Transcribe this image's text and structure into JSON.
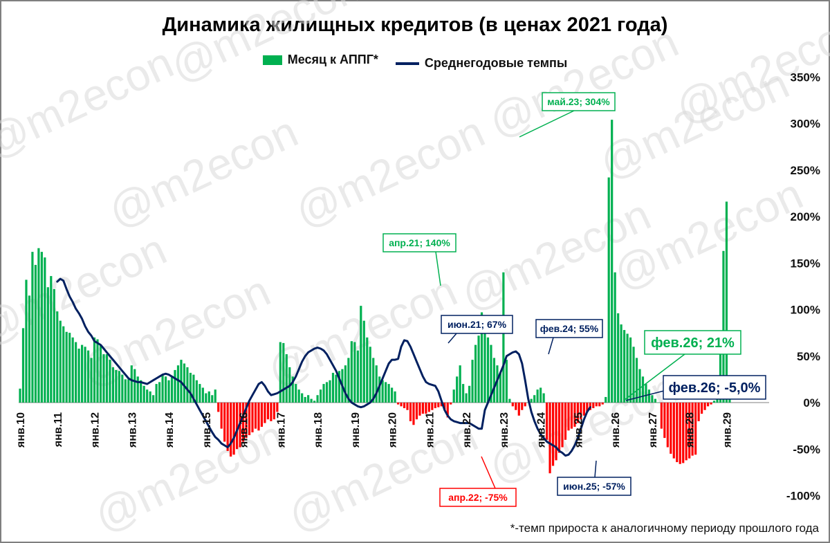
{
  "title": "Динамика жилищных кредитов (в ценах 2021 года)",
  "legend": {
    "bar_label": "Месяц к АППГ*",
    "line_label": "Среднегодовые темпы"
  },
  "footnote": "*-темп прироста к аналогичному периоду прошлого года",
  "watermark": "@m2econ",
  "colors": {
    "bar_positive": "#00b050",
    "bar_negative": "#ff0000",
    "line": "#002060"
  },
  "chart_data": {
    "type": "bar",
    "title": "Динамика жилищных кредитов (в ценах 2021 года)",
    "x_start": "янв.10",
    "x_ticks": [
      "янв.10",
      "янв.11",
      "янв.12",
      "янв.13",
      "янв.14",
      "янв.15",
      "янв.16",
      "янв.17",
      "янв.18",
      "янв.19",
      "янв.20",
      "янв.21",
      "янв.22",
      "янв.23",
      "янв.24",
      "янв.25",
      "янв.26",
      "янв.27",
      "янв.28",
      "янв.29"
    ],
    "y_ticks": [
      "350%",
      "300%",
      "250%",
      "200%",
      "150%",
      "100%",
      "50%",
      "0%",
      "-50%",
      "-100%"
    ],
    "ylim": [
      -100,
      350
    ],
    "series": [
      {
        "name": "Месяц к АППГ*",
        "type": "bar",
        "values": [
          15,
          80,
          132,
          115,
          162,
          148,
          166,
          162,
          156,
          124,
          136,
          122,
          98,
          88,
          82,
          76,
          75,
          70,
          65,
          58,
          62,
          60,
          56,
          48,
          70,
          68,
          62,
          52,
          52,
          46,
          38,
          35,
          34,
          30,
          25,
          25,
          40,
          36,
          28,
          24,
          18,
          14,
          12,
          8,
          20,
          22,
          30,
          28,
          24,
          28,
          35,
          40,
          46,
          42,
          38,
          32,
          30,
          24,
          20,
          16,
          10,
          12,
          8,
          14,
          -10,
          -28,
          -42,
          -52,
          -58,
          -56,
          -50,
          -48,
          -42,
          -38,
          -35,
          -32,
          -28,
          -30,
          -26,
          -22,
          -18,
          -20,
          -18,
          -10,
          65,
          64,
          52,
          38,
          28,
          20,
          14,
          10,
          6,
          8,
          4,
          2,
          8,
          14,
          20,
          22,
          24,
          32,
          30,
          34,
          36,
          40,
          48,
          66,
          65,
          56,
          104,
          88,
          70,
          60,
          48,
          40,
          28,
          24,
          22,
          20,
          16,
          12,
          -2,
          -4,
          -6,
          -8,
          -20,
          -24,
          -18,
          -14,
          -12,
          -12,
          -10,
          -8,
          -6,
          -5,
          -4,
          -8,
          -16,
          -2,
          14,
          28,
          40,
          20,
          10,
          18,
          46,
          62,
          72,
          97,
          85,
          70,
          62,
          48,
          40,
          32,
          140,
          46,
          4,
          -4,
          -8,
          -14,
          -8,
          -4,
          0,
          4,
          8,
          14,
          16,
          10,
          -40,
          -76,
          -68,
          -62,
          -54,
          -48,
          -40,
          -30,
          -28,
          -26,
          -22,
          -18,
          -14,
          -10,
          -8,
          -6,
          -4,
          -4,
          -2,
          6,
          242,
          304,
          140,
          96,
          84,
          78,
          74,
          70,
          60,
          48,
          36,
          28,
          20,
          14,
          8,
          4,
          0,
          -28,
          -38,
          -48,
          -55,
          -60,
          -64,
          -66,
          -65,
          -62,
          -60,
          -57,
          -56,
          -20,
          -12,
          -8,
          -4,
          -2,
          2,
          24,
          72,
          163,
          216,
          22
        ]
      },
      {
        "name": "Среднегодовые темпы",
        "type": "line",
        "values": [
          130,
          133,
          131,
          122,
          114,
          108,
          101,
          96,
          90,
          82,
          76,
          72,
          66,
          64,
          62,
          58,
          54,
          50,
          46,
          42,
          38,
          34,
          30,
          26,
          24,
          23,
          22,
          22,
          21,
          20,
          22,
          24,
          26,
          28,
          30,
          31,
          30,
          28,
          26,
          24,
          22,
          18,
          14,
          10,
          4,
          -2,
          -8,
          -14,
          -20,
          -26,
          -32,
          -37,
          -40,
          -44,
          -46,
          -48,
          -44,
          -38,
          -30,
          -22,
          -14,
          -6,
          2,
          8,
          14,
          20,
          22,
          18,
          12,
          8,
          9,
          10,
          12,
          14,
          16,
          18,
          22,
          28,
          36,
          44,
          50,
          54,
          56,
          58,
          59,
          58,
          56,
          52,
          46,
          40,
          34,
          26,
          18,
          10,
          4,
          0,
          -2,
          -4,
          -5,
          -4,
          -2,
          0,
          4,
          10,
          18,
          26,
          34,
          42,
          46,
          46,
          47,
          60,
          67,
          66,
          60,
          52,
          44,
          36,
          28,
          22,
          20,
          19,
          18,
          12,
          2,
          -8,
          -14,
          -18,
          -20,
          -21,
          -22,
          -22,
          -22,
          -22,
          -24,
          -26,
          -28,
          -28,
          -8,
          0,
          8,
          16,
          24,
          32,
          40,
          50,
          52,
          54,
          55,
          52,
          42,
          24,
          4,
          -10,
          -20,
          -28,
          -34,
          -38,
          -42,
          -44,
          -46,
          -48,
          -52,
          -54,
          -57,
          -56,
          -52,
          -46,
          -38,
          -28,
          -18,
          -10,
          -5
        ]
      }
    ],
    "annotations": [
      {
        "label": "апр.21; 140%",
        "color": "green"
      },
      {
        "label": "май.23; 304%",
        "color": "green"
      },
      {
        "label": "фев.26; 21%",
        "color": "green"
      },
      {
        "label": "апр.22; -75%",
        "color": "red"
      },
      {
        "label": "июн.21; 67%",
        "color": "navy"
      },
      {
        "label": "фев.24; 55%",
        "color": "navy"
      },
      {
        "label": "июн.25; -57%",
        "color": "navy"
      },
      {
        "label": "фев.26; -5,0%",
        "color": "navy"
      }
    ]
  }
}
